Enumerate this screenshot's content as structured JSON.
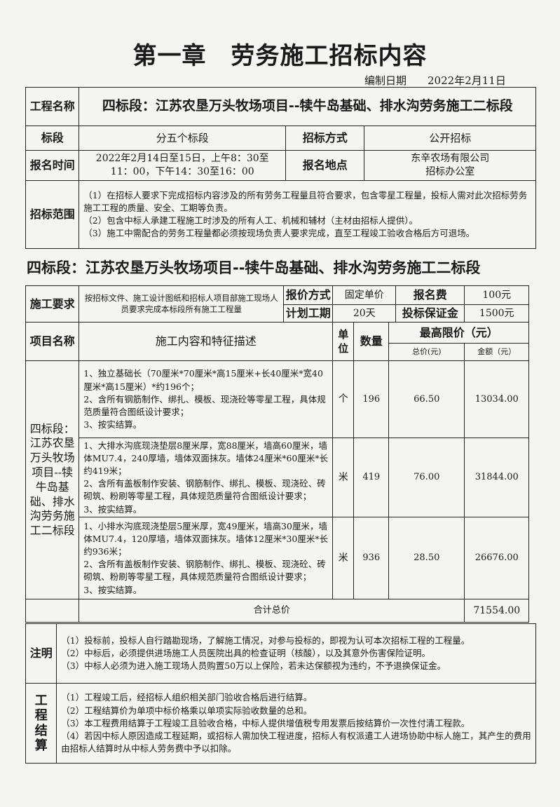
{
  "title": "第一章　劳务施工招标内容",
  "compile_date": {
    "label": "编制日期",
    "value": "2022年2月11日"
  },
  "info": {
    "project_name_label": "工程名称",
    "project_name": "四标段：江苏农垦万头牧场项目--犊牛岛基础、排水沟劳务施工二标段",
    "section_label": "标段",
    "section": "分五个标段",
    "method_label": "招标方式",
    "method": "公开招标",
    "signup_time_label": "报名时间",
    "signup_time": [
      "2022年2月14日至15日，上午8：30至",
      "11：00，下午14：30至16：00"
    ],
    "signup_place_label": "报名地点",
    "signup_place": [
      "东辛农场有限公司",
      "招标办公室"
    ],
    "scope_label": "招标范围",
    "scope": [
      "（1）在招标人要求下完成招标内容涉及的所有劳务工程量且符合要求，包含零星工程量，投标人需对此次招标劳务施工工程的质量、安全、工期等负责。",
      "（2）包含中标人承建工程施工时涉及的所有人工、机械和辅材（主材由招标人提供）。",
      "（3）施工中需配合的劳务工程量都必须按现场负责人要求完成，直至工程竣工验收合格后方可退场。"
    ]
  },
  "section_heading": "四标段：江苏农垦万头牧场项目--犊牛岛基础、排水沟劳务施工二标段",
  "detail": {
    "req_label": "施工要求",
    "req": "按招标文件、施工设计图纸和招标人项目部施工现场人员要求完成本标段所有施工工程量",
    "quote_label": "报价方式",
    "quote": "固定单价",
    "fee_label": "报名费",
    "fee": "100元",
    "period_label": "计划工期",
    "period": "20天",
    "deposit_label": "投标保证金",
    "deposit": "1500元",
    "headers": {
      "name": "项目名称",
      "desc": "施工内容和特征描述",
      "unit": "单位",
      "qty": "数量",
      "max": "最高限价（元）",
      "unit_price": "总价(元)",
      "amount": "金额（元）"
    },
    "project": "四标段：江苏农垦万头牧场项目--犊牛岛基础、排水沟劳务施工二标段",
    "items": [
      {
        "desc": [
          "1、独立基础长（70厘米*70厘米*高15厘米+长40厘米*宽40厘米*高15厘米）*约196个；",
          "2、含所有钢筋制作、绑扎、模板、现浇砼等零星工程，具体规范质量符合图纸设计要求；",
          "3、按实结算。"
        ],
        "unit": "个",
        "qty": "196",
        "price": "66.50",
        "amount": "13034.00"
      },
      {
        "desc": [
          "1、大排水沟底现浇垫层8厘米厚，宽88厘米，墙高60厘米，墙体MU7.4，240厚墙，墙体双面抹灰。墙体24厘米*60厘米*长约419米；",
          "2、含所有盖板制作安装、钢筋制作、绑扎、模板、现浇砼、砖砌筑、粉刷等零星工程，具体规范质量符合图纸设计要求；",
          "3、按实结算。"
        ],
        "unit": "米",
        "qty": "419",
        "price": "76.00",
        "amount": "31844.00"
      },
      {
        "desc": [
          "1、小排水沟底现浇垫层5厘米厚，宽49厘米，墙高30厘米，墙体MU7.4，120厚墙，墙体双面抹灰。墙体12厘米*30厘米*长约936米；",
          "2、含所有盖板制作安装、钢筋制作、绑扎、模板、现浇砼、砖砌筑、粉刷等零星工程，具体规范质量符合图纸设计要求；",
          "3、按实结算。"
        ],
        "unit": "米",
        "qty": "936",
        "price": "28.50",
        "amount": "26676.00"
      }
    ],
    "total_label": "合计总价",
    "total": "71554.00"
  },
  "notes": {
    "label": "注明",
    "items": [
      "（1）投标前，投标人自行踏勘现场，了解施工情况，对参与投标的，即视为认可本次招标工程的工程量。",
      "（2）中标后，必须提供进场施工人员医院出具的检查证明（核酸），以及其意外伤害保险证明。",
      "（3）中标人必须为进入施工现场人员购置50万以上保险，若未达保额视为违约，不予退换保证金。"
    ]
  },
  "settlement": {
    "label": "工程结算",
    "items": [
      "（1）工程竣工后，经招标人组织相关部门验收合格后进行结算。",
      "（2）工程结算价为单项中标价格乘以单项实际验收数量的总和。",
      "（3）本工程费用结算于工程竣工且验收合格，中标人提供增值税专用发票后按结算价一次性付清工程款。",
      "（4）若因中标人原因造成工程延期，或招标人需加快工程进度，招标人有权派遣工人进场协助中标人施工，其产生的费用由招标人结算时从中标人劳务费中予以扣除。"
    ]
  }
}
